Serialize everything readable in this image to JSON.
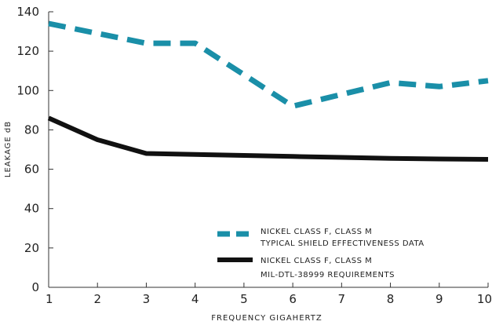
{
  "chart_data": {
    "type": "line",
    "title": "",
    "xlabel": "FREQUENCY GIGAHERTZ",
    "ylabel": "LEAKAGE dB",
    "x_ticks": [
      "1",
      "2",
      "3",
      "4",
      "5",
      "6",
      "7",
      "8",
      "9",
      "10"
    ],
    "y_ticks": [
      "0",
      "20",
      "40",
      "60",
      "80",
      "100",
      "120",
      "140"
    ],
    "xlim": [
      1,
      10
    ],
    "ylim": [
      0,
      140
    ],
    "grid": false,
    "legend_position": "bottom-right",
    "series": [
      {
        "name": "NICKEL CLASS F, CLASS M TYPICAL SHIELD EFFECTIVENESS DATA",
        "legend_lines": [
          "NICKEL CLASS F, CLASS M",
          "TYPICAL SHIELD EFFECTIVENESS DATA"
        ],
        "color": "#1a8fa8",
        "style": "dashed",
        "x": [
          1,
          2,
          3,
          4,
          5,
          6,
          7,
          8,
          9,
          10
        ],
        "y": [
          134,
          129,
          124,
          124,
          108,
          92,
          98,
          104,
          102,
          105
        ]
      },
      {
        "name": "NICKEL CLASS F, CLASS M MIL-DTL-38999 REQUIREMENTS",
        "legend_lines": [
          "NICKEL CLASS F, CLASS M",
          "MIL-DTL-38999 REQUIREMENTS"
        ],
        "color": "#111111",
        "style": "solid",
        "x": [
          1,
          2,
          3,
          4,
          5,
          6,
          7,
          8,
          9,
          10
        ],
        "y": [
          86,
          75,
          68,
          67.5,
          67,
          66.5,
          66,
          65.5,
          65.2,
          65
        ]
      }
    ]
  }
}
